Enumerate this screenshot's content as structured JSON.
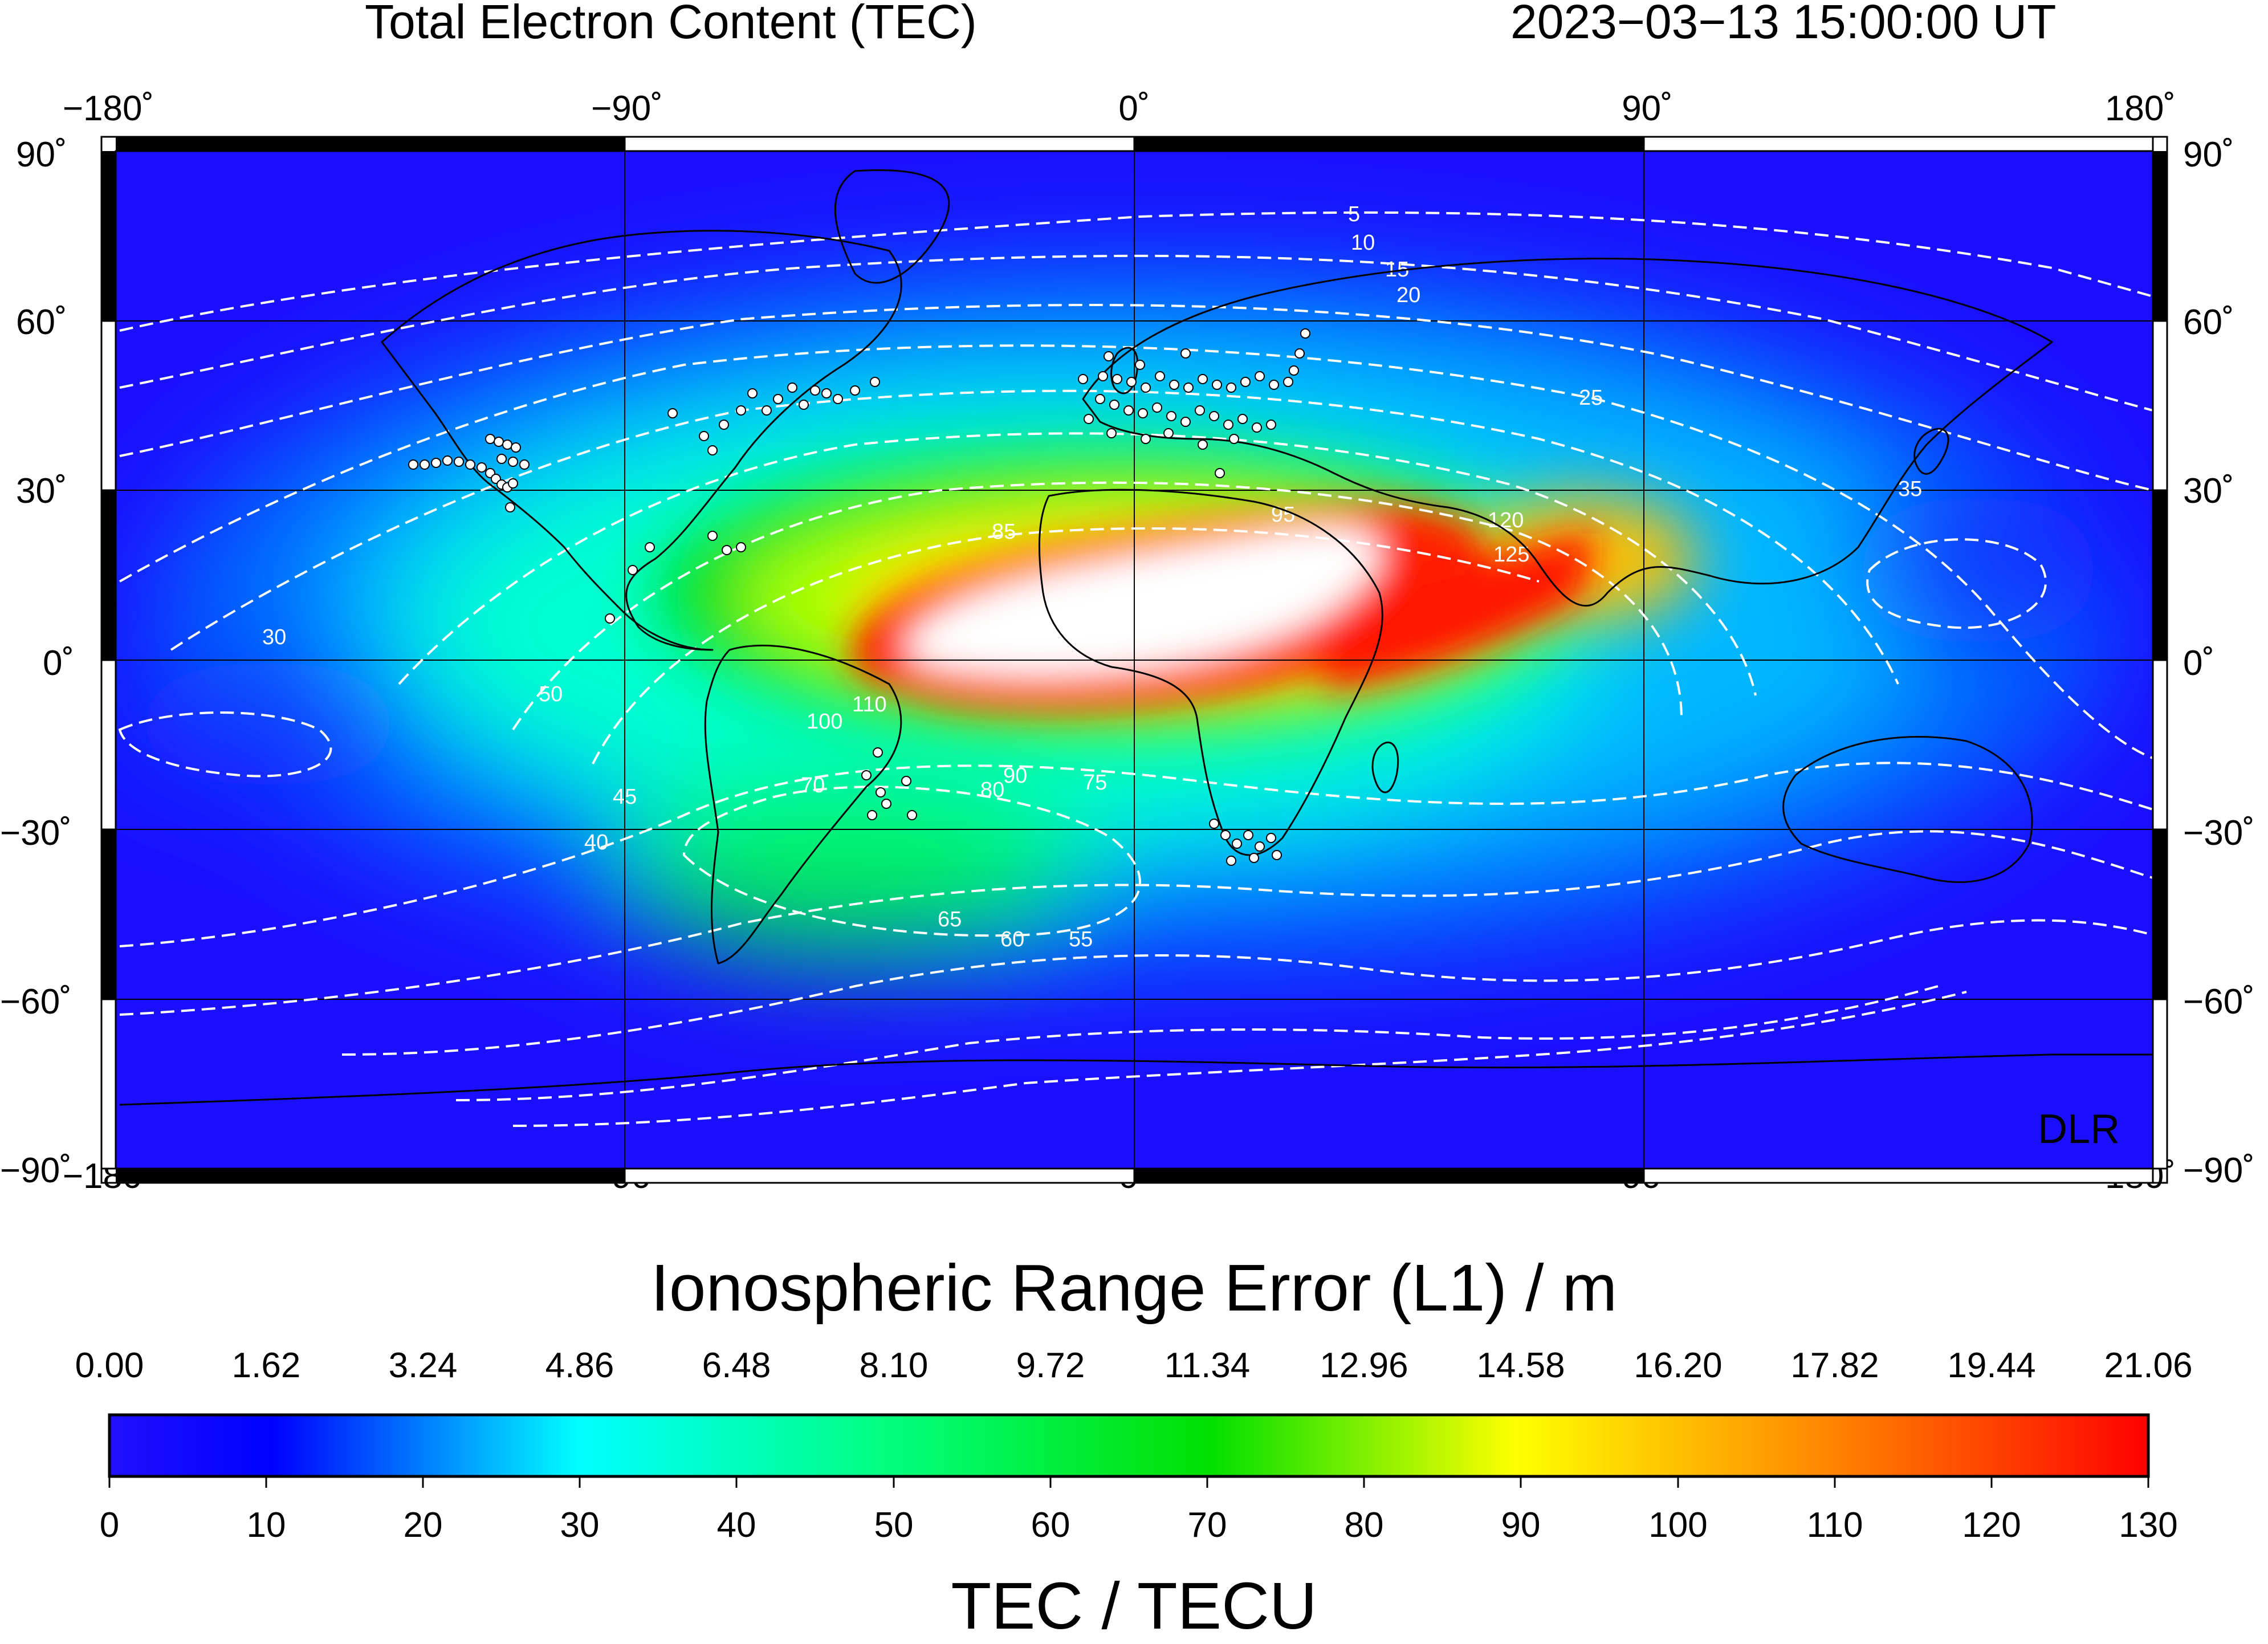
{
  "header": {
    "title": "Total Electron Content (TEC)",
    "datetime": "2023−03−13  15:00:00 UT"
  },
  "map": {
    "lon_ticks": [
      "−180˚",
      "−90˚",
      "0˚",
      "90˚",
      "180˚"
    ],
    "lat_ticks": [
      "90˚",
      "60˚",
      "30˚",
      "0˚",
      "−30˚",
      "−60˚",
      "−90˚"
    ],
    "credit": "DLR",
    "lon_range": [
      -180,
      180
    ],
    "lat_range": [
      -90,
      90
    ],
    "contour_labels": [
      "5",
      "10",
      "15",
      "20",
      "25",
      "30",
      "35",
      "40",
      "45",
      "50",
      "55",
      "60",
      "65",
      "70",
      "75",
      "80",
      "85",
      "90",
      "95",
      "100",
      "110",
      "120",
      "125"
    ],
    "colors": {
      "ocean_low": "#1a10ff",
      "max": "#ffffff",
      "contour": "#ffffff",
      "station": "#ffffff"
    }
  },
  "colorbar": {
    "top_title": "Ionospheric Range Error (L1) / m",
    "top_ticks": [
      "0.00",
      "1.62",
      "3.24",
      "4.86",
      "6.48",
      "8.10",
      "9.72",
      "11.34",
      "12.96",
      "14.58",
      "16.20",
      "17.82",
      "19.44",
      "21.06"
    ],
    "bottom_ticks": [
      "0",
      "10",
      "20",
      "30",
      "40",
      "50",
      "60",
      "70",
      "80",
      "90",
      "100",
      "110",
      "120",
      "130"
    ],
    "bottom_title": "TEC / TECU",
    "range": [
      0,
      130
    ],
    "stops": [
      "#0000ff",
      "#00ffff",
      "#00ff00",
      "#ffff00",
      "#ff0000"
    ]
  },
  "chart_data": {
    "type": "heatmap",
    "title": "Total Electron Content (TEC)",
    "subtitle": "2023−03−13  15:00:00 UT",
    "xlim": [
      -180,
      180
    ],
    "ylim": [
      -90,
      90
    ],
    "value_range_TECU": [
      0,
      130
    ],
    "peak_region": {
      "lon_range": [
        -45,
        35
      ],
      "lat_range": [
        -5,
        25
      ],
      "value": ">130"
    }
  }
}
